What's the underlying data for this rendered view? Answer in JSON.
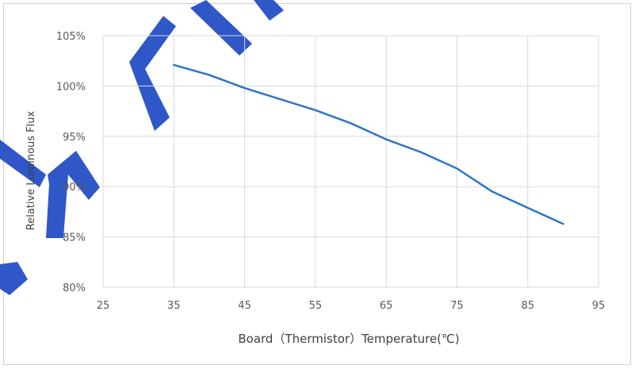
{
  "chart_data": {
    "type": "line",
    "title": "",
    "xlabel": "Board（Thermistor）Temperature(℃)",
    "ylabel": "Relative Luminous Flux",
    "x_ticks": [
      "25",
      "35",
      "45",
      "55",
      "65",
      "75",
      "85",
      "95"
    ],
    "y_ticks": [
      "80%",
      "85%",
      "90%",
      "95%",
      "100%",
      "105%"
    ],
    "xlim": [
      25,
      95
    ],
    "ylim": [
      80,
      105
    ],
    "grid": true,
    "legend": "none",
    "series": [
      {
        "color": "#2e75c6",
        "x": [
          35,
          40,
          45,
          50,
          55,
          60,
          65,
          70,
          75,
          80,
          85,
          90
        ],
        "y": [
          102.1,
          101.1,
          99.8,
          98.7,
          97.6,
          96.3,
          94.7,
          93.4,
          91.8,
          89.5,
          87.9,
          86.3
        ]
      }
    ]
  },
  "colors": {
    "line": "#2e75c6",
    "grid": "#d9d9d9",
    "watermark": "#2f57c8"
  }
}
